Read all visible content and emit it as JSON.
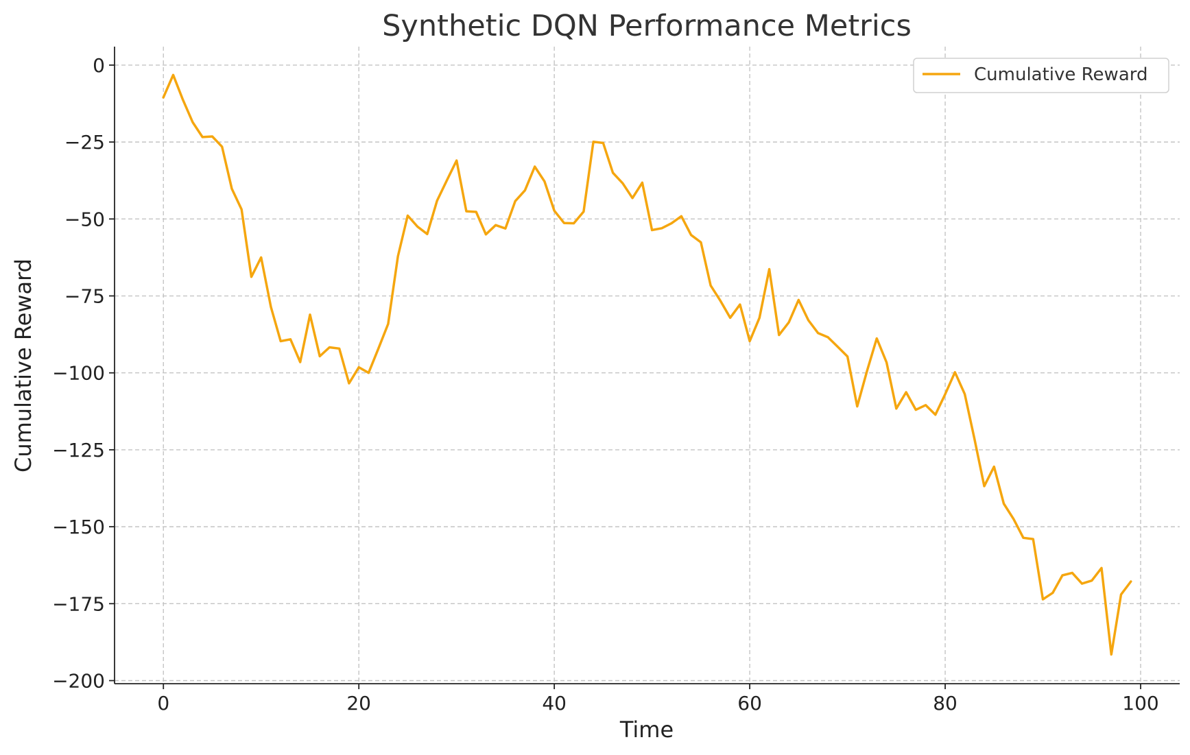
{
  "chart_data": {
    "type": "line",
    "title": "Synthetic DQN Performance Metrics",
    "xlabel": "Time",
    "ylabel": "Cumulative Reward",
    "xlim": [
      -5,
      104
    ],
    "ylim": [
      -201,
      6
    ],
    "xticks": [
      0,
      20,
      40,
      60,
      80,
      100
    ],
    "yticks": [
      0,
      -25,
      -50,
      -75,
      -100,
      -125,
      -150,
      -175,
      -200
    ],
    "ytick_labels": [
      "0",
      "−25",
      "−50",
      "−75",
      "−100",
      "−125",
      "−150",
      "−175",
      "−200"
    ],
    "grid": true,
    "legend_position": "top-right",
    "series": [
      {
        "name": "Cumulative Reward",
        "color": "#f5a60f",
        "x": [
          0,
          1,
          2,
          3,
          4,
          5,
          6,
          7,
          8,
          9,
          10,
          11,
          12,
          13,
          14,
          15,
          16,
          17,
          18,
          19,
          20,
          21,
          22,
          23,
          24,
          25,
          26,
          27,
          28,
          29,
          30,
          31,
          32,
          33,
          34,
          35,
          36,
          37,
          38,
          39,
          40,
          41,
          42,
          43,
          44,
          45,
          46,
          47,
          48,
          49,
          50,
          51,
          52,
          53,
          54,
          55,
          56,
          57,
          58,
          59,
          60,
          61,
          62,
          63,
          64,
          65,
          66,
          67,
          68,
          69,
          70,
          71,
          72,
          73,
          74,
          75,
          76,
          77,
          78,
          79,
          80,
          81,
          82,
          83,
          84,
          85,
          86,
          87,
          88,
          89,
          90,
          91,
          92,
          93,
          94,
          95,
          96,
          97,
          98,
          99
        ],
        "values": [
          -10.5,
          -3.2,
          -11.3,
          -18.6,
          -23.4,
          -23.2,
          -26.5,
          -40.2,
          -46.9,
          -68.8,
          -62.5,
          -78.6,
          -89.7,
          -89.1,
          -96.5,
          -81.1,
          -94.6,
          -91.7,
          -92.1,
          -103.4,
          -98.2,
          -100.0,
          -92.1,
          -84.1,
          -62.1,
          -48.9,
          -52.5,
          -54.9,
          -44.1,
          -37.5,
          -31.0,
          -47.5,
          -47.7,
          -55.0,
          -52.0,
          -53.1,
          -44.2,
          -40.7,
          -33.0,
          -37.8,
          -47.3,
          -51.3,
          -51.4,
          -47.6,
          -24.9,
          -25.3,
          -35.0,
          -38.4,
          -43.2,
          -38.2,
          -53.6,
          -53.0,
          -51.4,
          -49.1,
          -55.2,
          -57.6,
          -71.6,
          -76.6,
          -82.1,
          -77.8,
          -89.7,
          -82.1,
          -66.3,
          -87.7,
          -83.6,
          -76.3,
          -82.9,
          -87.1,
          -88.4,
          -91.5,
          -94.7,
          -110.9,
          -99.4,
          -88.8,
          -96.6,
          -111.6,
          -106.3,
          -112.0,
          -110.5,
          -113.6,
          -106.9,
          -99.8,
          -106.9,
          -121.5,
          -136.8,
          -130.5,
          -142.5,
          -147.5,
          -153.6,
          -154.0,
          -173.6,
          -171.5,
          -165.8,
          -165.0,
          -168.5,
          -167.5,
          -163.4,
          -191.5,
          -172.0,
          -167.8
        ]
      }
    ]
  }
}
